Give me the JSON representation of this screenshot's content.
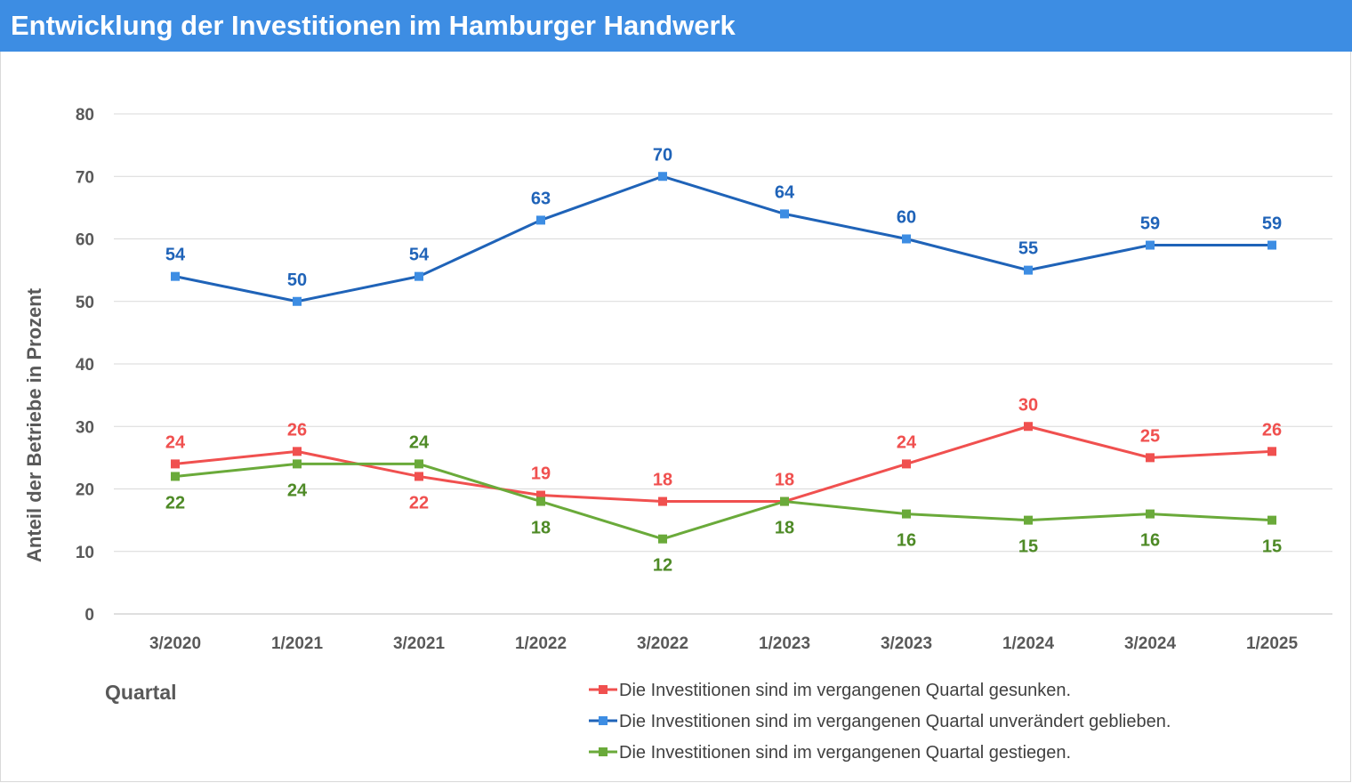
{
  "title": "Entwicklung der Investitionen im Hamburger Handwerk",
  "chart_data": {
    "type": "line",
    "title": "Entwicklung der Investitionen im Hamburger Handwerk",
    "xlabel": "Quartal",
    "ylabel": "Anteil der Betriebe in Prozent",
    "ylim": [
      0,
      80
    ],
    "yticks": [
      "0",
      "10",
      "20",
      "30",
      "40",
      "50",
      "60",
      "70",
      "80"
    ],
    "categories": [
      "3/2020",
      "1/2021",
      "3/2021",
      "1/2022",
      "3/2022",
      "1/2023",
      "3/2023",
      "1/2024",
      "3/2024",
      "1/2025"
    ],
    "grid": true,
    "legend_position": "bottom-right",
    "series": [
      {
        "name": "Die Investitionen sind im vergangenen Quartal gesunken.",
        "color": "#f0504f",
        "marker_color": "#f0504f",
        "values": [
          24,
          26,
          22,
          19,
          18,
          18,
          24,
          30,
          25,
          26
        ],
        "labels": [
          "24",
          "26",
          "22",
          "19",
          "18",
          "18",
          "24",
          "30",
          "25",
          "26"
        ],
        "label_pos": [
          "above",
          "above",
          "below",
          "above",
          "above",
          "above",
          "above",
          "above",
          "above",
          "above"
        ]
      },
      {
        "name": "Die Investitionen sind im vergangenen Quartal unverändert geblieben.",
        "color": "#1f63b8",
        "marker_color": "#3d8de3",
        "values": [
          54,
          50,
          54,
          63,
          70,
          64,
          60,
          55,
          59,
          59
        ],
        "labels": [
          "54",
          "50",
          "54",
          "63",
          "70",
          "64",
          "60",
          "55",
          "59",
          "59"
        ],
        "label_pos": [
          "above",
          "above",
          "above",
          "above",
          "above",
          "above",
          "above",
          "above",
          "above",
          "above"
        ]
      },
      {
        "name": "Die Investitionen sind im vergangenen Quartal gestiegen.",
        "color": "#6aaa3a",
        "marker_color": "#6aaa3a",
        "label_color": "#4e8a26",
        "values": [
          22,
          24,
          24,
          18,
          12,
          18,
          16,
          15,
          16,
          15
        ],
        "labels": [
          "22",
          "24",
          "24",
          "18",
          "12",
          "18",
          "16",
          "15",
          "16",
          "15"
        ],
        "label_pos": [
          "below",
          "below",
          "above",
          "below",
          "below",
          "below",
          "below",
          "below",
          "below",
          "below"
        ]
      }
    ]
  }
}
